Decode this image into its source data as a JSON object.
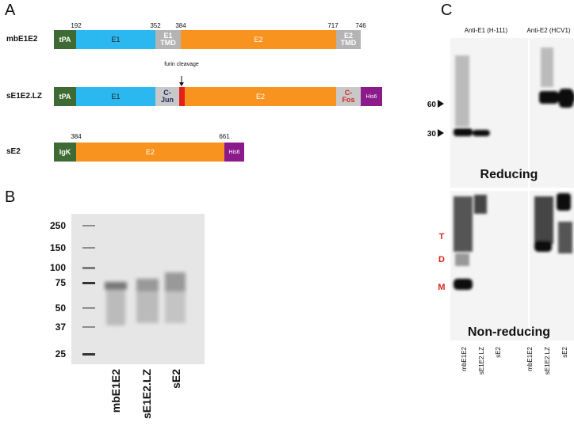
{
  "panel_a": {
    "label": "A",
    "constructs": [
      {
        "name": "mbE1E2",
        "positions": [
          192,
          352,
          384,
          717,
          746
        ],
        "domains": [
          "tPA",
          "E1",
          "E1 TMD",
          "E2",
          "E2 TMD"
        ]
      },
      {
        "name": "sE1E2.LZ",
        "domains": [
          "tPA",
          "E1",
          "C-Jun",
          "E2",
          "C-Fos",
          "His6"
        ]
      },
      {
        "name": "sE2",
        "positions": [
          384,
          661
        ],
        "domains": [
          "IgK",
          "E2",
          "His6"
        ]
      }
    ],
    "annotation": "furin cleavage"
  },
  "panel_b": {
    "label": "B",
    "markers": [
      250,
      150,
      100,
      75,
      50,
      37,
      25
    ],
    "lanes": [
      "mbE1E2",
      "sE1E2.LZ",
      "sE2"
    ]
  },
  "panel_c": {
    "label": "C",
    "antibodies": [
      "Anti-E1 (H-111)",
      "Anti-E2 (HCV1)"
    ],
    "markers": [
      60,
      30
    ],
    "conditions": [
      "Reducing",
      "Non-reducing"
    ],
    "bands": [
      "T",
      "D",
      "M"
    ],
    "lanes": [
      "mbE1E2",
      "sE1E2.LZ",
      "sE2",
      "mbE1E2",
      "sE1E2.LZ",
      "sE2"
    ]
  }
}
